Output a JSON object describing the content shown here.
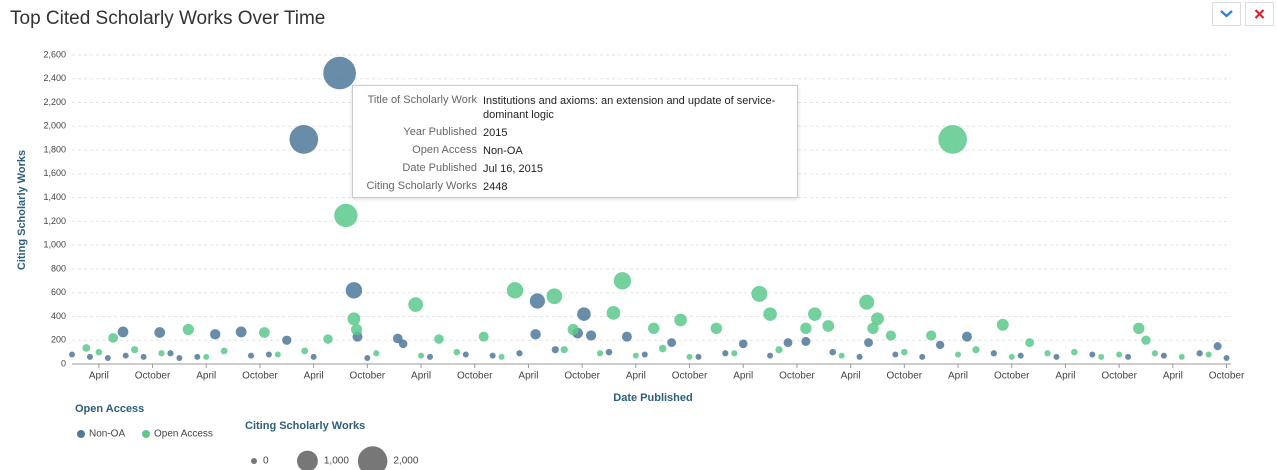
{
  "chart_data": {
    "type": "bubble",
    "title": "Top Cited Scholarly Works Over Time",
    "x_label": "Date Published",
    "y_label": "Citing Scholarly Works",
    "legend_title": "Open Access",
    "size_legend": {
      "title": "Citing Scholarly Works",
      "values": [
        0,
        1000,
        2000
      ],
      "value_labels": [
        "0",
        "1,000",
        "2,000"
      ]
    },
    "xlim": [
      0,
      129.5
    ],
    "xticks": [
      {
        "value": 3,
        "label": "April"
      },
      {
        "value": 9,
        "label": "October"
      },
      {
        "value": 15,
        "label": "April"
      },
      {
        "value": 21,
        "label": "October"
      },
      {
        "value": 27,
        "label": "April"
      },
      {
        "value": 33,
        "label": "October"
      },
      {
        "value": 39,
        "label": "April"
      },
      {
        "value": 45,
        "label": "October"
      },
      {
        "value": 51,
        "label": "April"
      },
      {
        "value": 57,
        "label": "October"
      },
      {
        "value": 63,
        "label": "April"
      },
      {
        "value": 69,
        "label": "October"
      },
      {
        "value": 75,
        "label": "April"
      },
      {
        "value": 81,
        "label": "October"
      },
      {
        "value": 87,
        "label": "April"
      },
      {
        "value": 93,
        "label": "October"
      },
      {
        "value": 99,
        "label": "April"
      },
      {
        "value": 105,
        "label": "October"
      },
      {
        "value": 111,
        "label": "April"
      },
      {
        "value": 117,
        "label": "October"
      },
      {
        "value": 123,
        "label": "April"
      },
      {
        "value": 129,
        "label": "October"
      }
    ],
    "ylim": [
      0,
      2600
    ],
    "yticks": [
      0,
      200,
      400,
      600,
      800,
      {
        "value": 1000,
        "label": "1,000"
      },
      {
        "value": 1200,
        "label": "1,200"
      },
      {
        "value": 1400,
        "label": "1,400"
      },
      {
        "value": 1600,
        "label": "1,600"
      },
      {
        "value": 1800,
        "label": "1,800"
      },
      {
        "value": 2000,
        "label": "2,000"
      },
      {
        "value": 2200,
        "label": "2,200"
      },
      {
        "value": 2400,
        "label": "2,400"
      },
      {
        "value": 2600,
        "label": "2,600"
      }
    ],
    "grid": true,
    "series": [
      {
        "name": "Non-OA",
        "color": "#4f7899",
        "x": [
          29.9,
          25.9,
          31.5,
          52,
          57.2,
          31.9,
          5.7,
          9.8,
          16,
          18.9,
          24,
          36.4,
          37,
          51.8,
          56.5,
          58,
          62,
          67,
          75,
          80,
          82,
          89,
          97,
          100,
          128,
          0,
          2,
          4,
          6,
          8,
          11,
          12,
          14,
          20,
          22,
          27,
          33,
          40,
          44,
          47,
          50,
          54,
          60,
          64,
          70,
          73,
          78,
          85,
          88,
          92,
          95,
          103,
          106,
          110,
          114,
          118,
          122,
          126,
          129
        ],
        "values": [
          2448,
          1890,
          620,
          530,
          420,
          230,
          270,
          265,
          250,
          270,
          200,
          215,
          170,
          250,
          260,
          240,
          230,
          180,
          170,
          180,
          190,
          180,
          160,
          230,
          150,
          80,
          60,
          50,
          70,
          60,
          90,
          50,
          60,
          70,
          80,
          60,
          50,
          60,
          80,
          70,
          90,
          120,
          100,
          80,
          60,
          90,
          70,
          100,
          60,
          80,
          60,
          90,
          70,
          60,
          80,
          60,
          70,
          90,
          50
        ]
      },
      {
        "name": "Open Access",
        "color": "#5cc98c",
        "x": [
          30.6,
          98.4,
          31.5,
          38.4,
          49.5,
          53.9,
          61.5,
          76.8,
          88.8,
          119.2,
          31.8,
          13,
          21.5,
          1.6,
          4.6,
          28.6,
          56,
          60.5,
          65,
          78,
          82,
          83,
          84.5,
          90,
          89.5,
          96,
          104,
          41,
          46,
          68,
          72,
          91.5,
          107,
          120,
          3,
          7,
          10,
          15,
          17,
          23,
          26,
          34,
          39,
          43,
          48,
          55,
          59,
          63,
          66,
          69,
          74,
          79,
          86,
          93,
          99,
          101,
          105,
          109,
          112,
          115,
          117,
          121,
          124,
          127
        ],
        "values": [
          1250,
          1890,
          380,
          500,
          620,
          570,
          700,
          590,
          520,
          300,
          290,
          290,
          265,
          135,
          220,
          210,
          290,
          430,
          300,
          420,
          300,
          420,
          320,
          380,
          300,
          240,
          330,
          210,
          230,
          370,
          300,
          240,
          180,
          200,
          100,
          120,
          90,
          60,
          110,
          80,
          110,
          90,
          70,
          100,
          60,
          120,
          90,
          70,
          130,
          60,
          90,
          120,
          70,
          100,
          80,
          120,
          60,
          90,
          100,
          60,
          80,
          90,
          60,
          80
        ]
      }
    ]
  },
  "tooltip": {
    "rows": [
      {
        "label": "Title of Scholarly Work",
        "value": "Institutions and axioms: an extension and update of service-dominant logic"
      },
      {
        "label": "Year Published",
        "value": "2015"
      },
      {
        "label": "Open Access",
        "value": "Non-OA"
      },
      {
        "label": "Date Published",
        "value": "Jul 16, 2015"
      },
      {
        "label": "Citing Scholarly Works",
        "value": "2448"
      }
    ]
  }
}
